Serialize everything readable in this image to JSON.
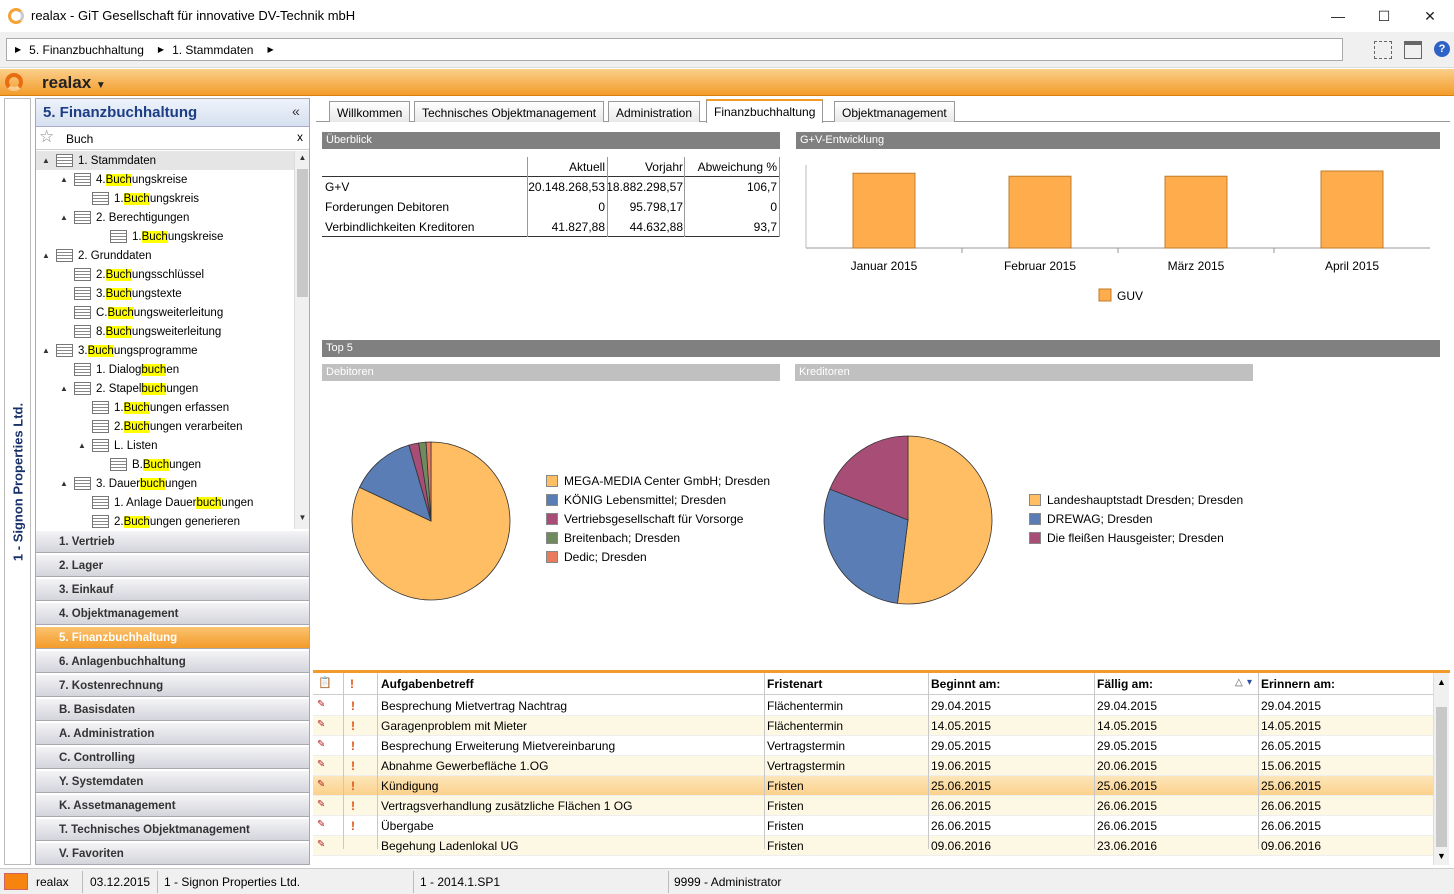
{
  "window": {
    "title": "realax - GiT Gesellschaft für innovative DV-Technik mbH",
    "minimize": "—",
    "maximize": "☐",
    "close": "✕"
  },
  "breadcrumb": [
    "5. Finanzbuchhaltung",
    "1. Stammdaten"
  ],
  "app": {
    "name": "realax"
  },
  "tenant": "1 - Signon Properties Ltd.",
  "nav": {
    "title": "5. Finanzbuchhaltung",
    "collapse": "«",
    "search_value": "Buch",
    "clear": "x",
    "tree": [
      {
        "pre": "1. Stammdaten",
        "hl": "",
        "post": "",
        "level": 0,
        "exp": "▲",
        "selected": true
      },
      {
        "pre": "4. ",
        "hl": "Buch",
        "post": "ungskreise",
        "level": 1,
        "exp": "▲"
      },
      {
        "pre": "1. ",
        "hl": "Buch",
        "post": "ungskreis",
        "level": 2,
        "exp": ""
      },
      {
        "pre": "2. Berechtigungen",
        "hl": "",
        "post": "",
        "level": 1,
        "exp": "▲"
      },
      {
        "pre": "1. ",
        "hl": "Buch",
        "post": "ungskreise",
        "level": 3,
        "exp": ""
      },
      {
        "pre": "2. Grunddaten",
        "hl": "",
        "post": "",
        "level": 0,
        "exp": "▲"
      },
      {
        "pre": "2. ",
        "hl": "Buch",
        "post": "ungsschlüssel",
        "level": 1,
        "exp": ""
      },
      {
        "pre": "3. ",
        "hl": "Buch",
        "post": "ungstexte",
        "level": 1,
        "exp": ""
      },
      {
        "pre": "C. ",
        "hl": "Buch",
        "post": "ungsweiterleitung",
        "level": 1,
        "exp": ""
      },
      {
        "pre": "8. ",
        "hl": "Buch",
        "post": "ungsweiterleitung",
        "level": 1,
        "exp": ""
      },
      {
        "pre": "3. ",
        "hl": "Buch",
        "post": "ungsprogramme",
        "level": 0,
        "exp": "▲"
      },
      {
        "pre": "1. Dialog ",
        "hl": "buch",
        "post": "en",
        "level": 1,
        "exp": ""
      },
      {
        "pre": "2. Stapel",
        "hl": "buch",
        "post": "ungen",
        "level": 1,
        "exp": "▲"
      },
      {
        "pre": "1. ",
        "hl": "Buch",
        "post": "ungen erfassen",
        "level": 2,
        "exp": ""
      },
      {
        "pre": "2. ",
        "hl": "Buch",
        "post": "ungen verarbeiten",
        "level": 2,
        "exp": ""
      },
      {
        "pre": "L. Listen",
        "hl": "",
        "post": "",
        "level": 2,
        "exp": "▲"
      },
      {
        "pre": "B. ",
        "hl": "Buch",
        "post": "ungen",
        "level": 3,
        "exp": ""
      },
      {
        "pre": "3. Dauer",
        "hl": "buch",
        "post": "ungen",
        "level": 1,
        "exp": "▲"
      },
      {
        "pre": "1. Anlage Dauer",
        "hl": "buch",
        "post": "ungen",
        "level": 2,
        "exp": ""
      },
      {
        "pre": "2. ",
        "hl": "Buch",
        "post": "ungen generieren",
        "level": 2,
        "exp": ""
      }
    ],
    "modules": [
      "1. Vertrieb",
      "2. Lager",
      "3. Einkauf",
      "4. Objektmanagement",
      "5. Finanzbuchhaltung",
      "6. Anlagenbuchhaltung",
      "7. Kostenrechnung",
      "B. Basisdaten",
      "A. Administration",
      "C. Controlling",
      "Y. Systemdaten",
      "K. Assetmanagement",
      "T. Technisches Objektmanagement",
      "V. Favoriten"
    ],
    "active_module": 4
  },
  "tabs": [
    "Willkommen",
    "Technisches Objektmanagement",
    "Administration",
    "Finanzbuchhaltung",
    "Objektmanagement"
  ],
  "active_tab": 3,
  "overview": {
    "title": "Überblick",
    "headers": [
      "",
      "Aktuell",
      "Vorjahr",
      "Abweichung %"
    ],
    "rows": [
      [
        "G+V",
        "20.148.268,53",
        "18.882.298,57",
        "106,7"
      ],
      [
        "Forderungen Debitoren",
        "0",
        "95.798,17",
        "0"
      ],
      [
        "Verbindlichkeiten Kreditoren",
        "41.827,88",
        "44.632,88",
        "93,7"
      ]
    ]
  },
  "guv": {
    "title": "G+V-Entwicklung"
  },
  "top5": {
    "title": "Top 5",
    "debitoren_title": "Debitoren",
    "kreditoren_title": "Kreditoren"
  },
  "chart_data": [
    {
      "type": "bar",
      "title": "G+V-Entwicklung",
      "categories": [
        "Januar 2015",
        "Februar 2015",
        "März 2015",
        "April 2015"
      ],
      "series": [
        {
          "name": "GUV",
          "values": [
            100,
            96,
            96,
            103
          ],
          "color": "#ffac4d"
        }
      ],
      "ylim": [
        0,
        103
      ],
      "legend": "bottom-center"
    },
    {
      "type": "pie",
      "title": "Debitoren",
      "labels": [
        "MEGA-MEDIA Center GmbH; Dresden",
        "KÖNIG Lebensmittel; Dresden",
        "Vertriebsgesellschaft für Vorsorge",
        "Breitenbach; Dresden",
        "Dedic; Dresden"
      ],
      "values": [
        82,
        13.5,
        2,
        1.5,
        1
      ],
      "colors": [
        "#ffbe63",
        "#5b7db5",
        "#a84d76",
        "#6f8b5e",
        "#e87a5e"
      ],
      "legend": "right"
    },
    {
      "type": "pie",
      "title": "Kreditoren",
      "labels": [
        "Landeshauptstadt Dresden; Dresden",
        "DREWAG; Dresden",
        "Die fleißen Hausgeister; Dresden"
      ],
      "values": [
        52,
        29,
        19
      ],
      "colors": [
        "#ffbe63",
        "#5b7db5",
        "#a84d76"
      ],
      "legend": "right"
    }
  ],
  "tasks": {
    "headers": [
      "Aufgabenbetreff",
      "Fristenart",
      "Beginnt am:",
      "Fällig am:",
      "Erinnern am:"
    ],
    "rows": [
      [
        "Besprechung Mietvertrag Nachtrag",
        "Flächentermin",
        "29.04.2015",
        "29.04.2015",
        "29.04.2015"
      ],
      [
        "Garagenproblem mit Mieter",
        "Flächentermin",
        "14.05.2015",
        "14.05.2015",
        "14.05.2015"
      ],
      [
        "Besprechung Erweiterung Mietvereinbarung",
        "Vertragstermin",
        "29.05.2015",
        "29.05.2015",
        "26.05.2015"
      ],
      [
        "Abnahme Gewerbefläche 1.OG",
        "Vertragstermin",
        "19.06.2015",
        "20.06.2015",
        "15.06.2015"
      ],
      [
        "Kündigung",
        "Fristen",
        "25.06.2015",
        "25.06.2015",
        "25.06.2015"
      ],
      [
        "Vertragsverhandlung zusätzliche Flächen 1 OG",
        "Fristen",
        "26.06.2015",
        "26.06.2015",
        "26.06.2015"
      ],
      [
        "Übergabe",
        "Fristen",
        "26.06.2015",
        "26.06.2015",
        "26.06.2015"
      ],
      [
        "Begehung Ladenlokal UG",
        "Fristen",
        "09.06.2016",
        "23.06.2016",
        "09.06.2016"
      ]
    ],
    "priority": [
      true,
      true,
      true,
      true,
      true,
      true,
      true,
      false
    ],
    "selected_row": 4
  },
  "status": {
    "app": "realax",
    "date": "03.12.2015",
    "tenant": "1 - Signon Properties Ltd.",
    "version": "1 - 2014.1.SP1",
    "user": "9999 - Administrator"
  }
}
